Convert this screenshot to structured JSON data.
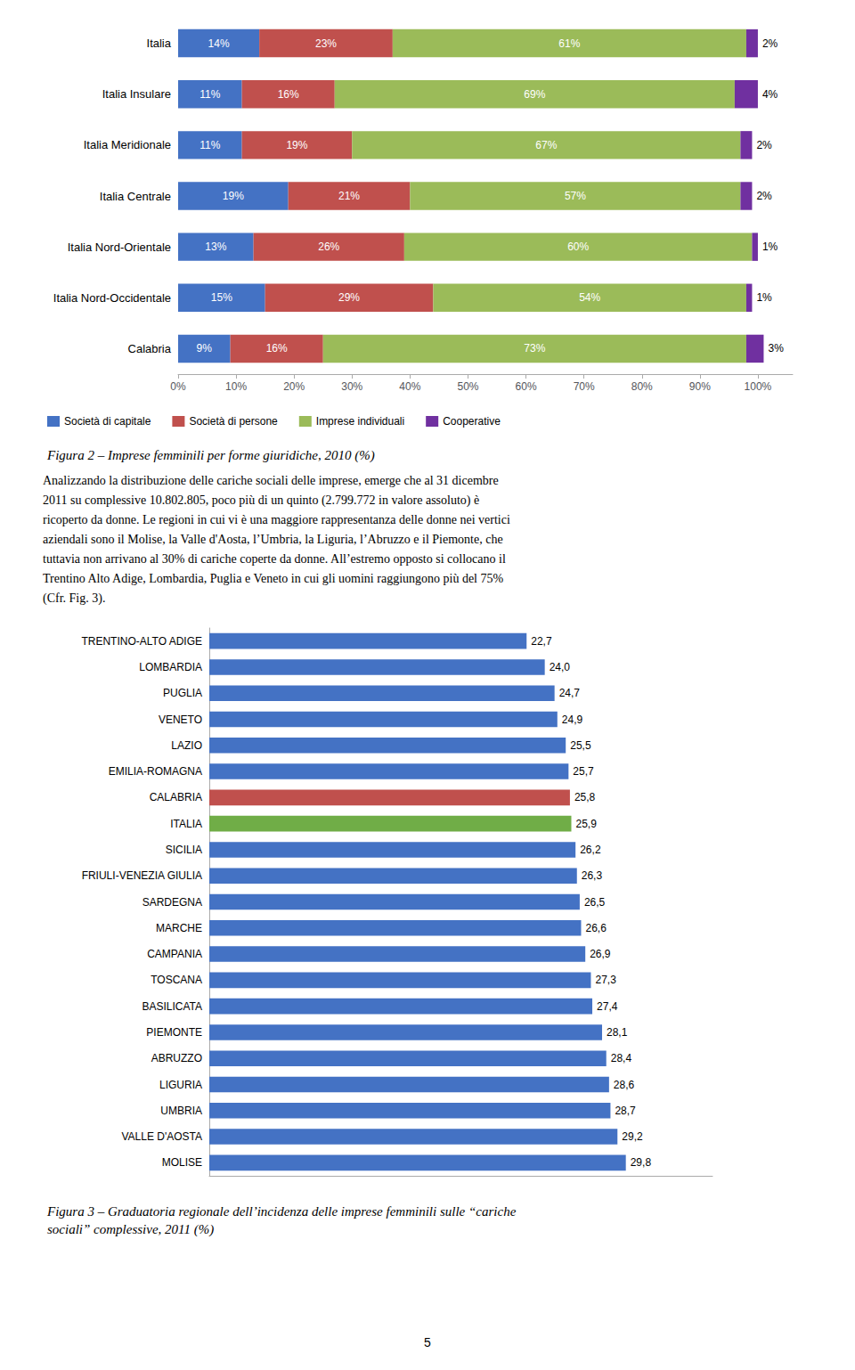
{
  "chart_data": [
    {
      "type": "bar",
      "orientation": "horizontal",
      "stacked": true,
      "title": "Figura 2 – Imprese femminili per forme giuridiche, 2010 (%)",
      "categories": [
        "Italia",
        "Italia Insulare",
        "Italia Meridionale",
        "Italia Centrale",
        "Italia Nord-Orientale",
        "Italia Nord-Occidentale",
        "Calabria"
      ],
      "series": [
        {
          "name": "Società di capitale",
          "color": "#4472C4",
          "values": [
            14,
            11,
            11,
            19,
            13,
            15,
            9
          ],
          "value_labels": [
            "14%",
            "11%",
            "11%",
            "19%",
            "13%",
            "15%",
            "9%"
          ]
        },
        {
          "name": "Società di persone",
          "color": "#C0504D",
          "values": [
            23,
            16,
            19,
            21,
            26,
            29,
            16
          ],
          "value_labels": [
            "23%",
            "16%",
            "19%",
            "21%",
            "26%",
            "29%",
            "16%"
          ]
        },
        {
          "name": "Imprese individuali",
          "color": "#9BBB59",
          "values": [
            61,
            69,
            67,
            57,
            60,
            54,
            73
          ],
          "value_labels": [
            "61%",
            "69%",
            "67%",
            "57%",
            "60%",
            "54%",
            "73%"
          ]
        },
        {
          "name": "Cooperative",
          "color": "#7030A0",
          "values": [
            2,
            4,
            2,
            2,
            1,
            1,
            3
          ],
          "value_labels": [
            "2%",
            "4%",
            "2%",
            "2%",
            "1%",
            "1%",
            "3%"
          ]
        }
      ],
      "xlim": [
        0,
        106
      ],
      "xticks": [
        {
          "value": 0,
          "label": "0%"
        },
        {
          "value": 10,
          "label": "10%"
        },
        {
          "value": 20,
          "label": "20%"
        },
        {
          "value": 30,
          "label": "30%"
        },
        {
          "value": 40,
          "label": "40%"
        },
        {
          "value": 50,
          "label": "50%"
        },
        {
          "value": 60,
          "label": "60%"
        },
        {
          "value": 70,
          "label": "70%"
        },
        {
          "value": 80,
          "label": "80%"
        },
        {
          "value": 90,
          "label": "90%"
        },
        {
          "value": 100,
          "label": "100%"
        }
      ],
      "grid": false,
      "legend": "bottom",
      "data_labels": true,
      "annotations": [
        "Analizzando la distribuzione delle cariche sociali delle imprese, emerge che al 31 dicembre",
        "2011 su complessive 10.802.805, poco più di un quinto (2.799.772 in valore assoluto) è",
        "ricoperto da donne. Le regioni in cui vi è una maggiore rappresentanza delle donne nei vertici",
        "aziendali sono il Molise, la Valle d'Aosta, l’Umbria, la Liguria, l’Abruzzo e il Piemonte, che",
        "tuttavia non arrivano al 30% di cariche coperte da donne. All’estremo opposto si collocano il",
        "Trentino Alto Adige, Lombardia, Puglia e Veneto in cui gli uomini raggiungono più del 75%",
        "(Cfr. Fig. 3)."
      ]
    },
    {
      "type": "bar",
      "orientation": "horizontal",
      "title": "Figura 3 – Graduatoria regionale dell’incidenza delle imprese femminili sulle “cariche\nsociali” complessive, 2011 (%)",
      "categories": [
        "TRENTINO-ALTO ADIGE",
        "LOMBARDIA",
        "PUGLIA",
        "VENETO",
        "LAZIO",
        "EMILIA-ROMAGNA",
        "CALABRIA",
        "ITALIA",
        "SICILIA",
        "FRIULI-VENEZIA GIULIA",
        "SARDEGNA",
        "MARCHE",
        "CAMPANIA",
        "TOSCANA",
        "BASILICATA",
        "PIEMONTE",
        "ABRUZZO",
        "LIGURIA",
        "UMBRIA",
        "VALLE D'AOSTA",
        "MOLISE"
      ],
      "values": [
        22.7,
        24.0,
        24.7,
        24.9,
        25.5,
        25.7,
        25.8,
        25.9,
        26.2,
        26.3,
        26.5,
        26.6,
        26.9,
        27.3,
        27.4,
        28.1,
        28.4,
        28.6,
        28.7,
        29.2,
        29.8
      ],
      "value_labels": [
        "22,7",
        "24,0",
        "24,7",
        "24,9",
        "25,5",
        "25,7",
        "25,8",
        "25,9",
        "26,2",
        "26,3",
        "26,5",
        "26,6",
        "26,9",
        "27,3",
        "27,4",
        "28,1",
        "28,4",
        "28,6",
        "28,7",
        "29,2",
        "29,8"
      ],
      "colors": [
        "#4472C4",
        "#4472C4",
        "#4472C4",
        "#4472C4",
        "#4472C4",
        "#4472C4",
        "#C0504D",
        "#70AD47",
        "#4472C4",
        "#4472C4",
        "#4472C4",
        "#4472C4",
        "#4472C4",
        "#4472C4",
        "#4472C4",
        "#4472C4",
        "#4472C4",
        "#4472C4",
        "#4472C4",
        "#4472C4",
        "#4472C4"
      ],
      "xlim": [
        0,
        36
      ],
      "xticks": [],
      "grid": false,
      "tick_labels": "y",
      "data_labels": true,
      "annotations": [
        "5"
      ]
    }
  ]
}
